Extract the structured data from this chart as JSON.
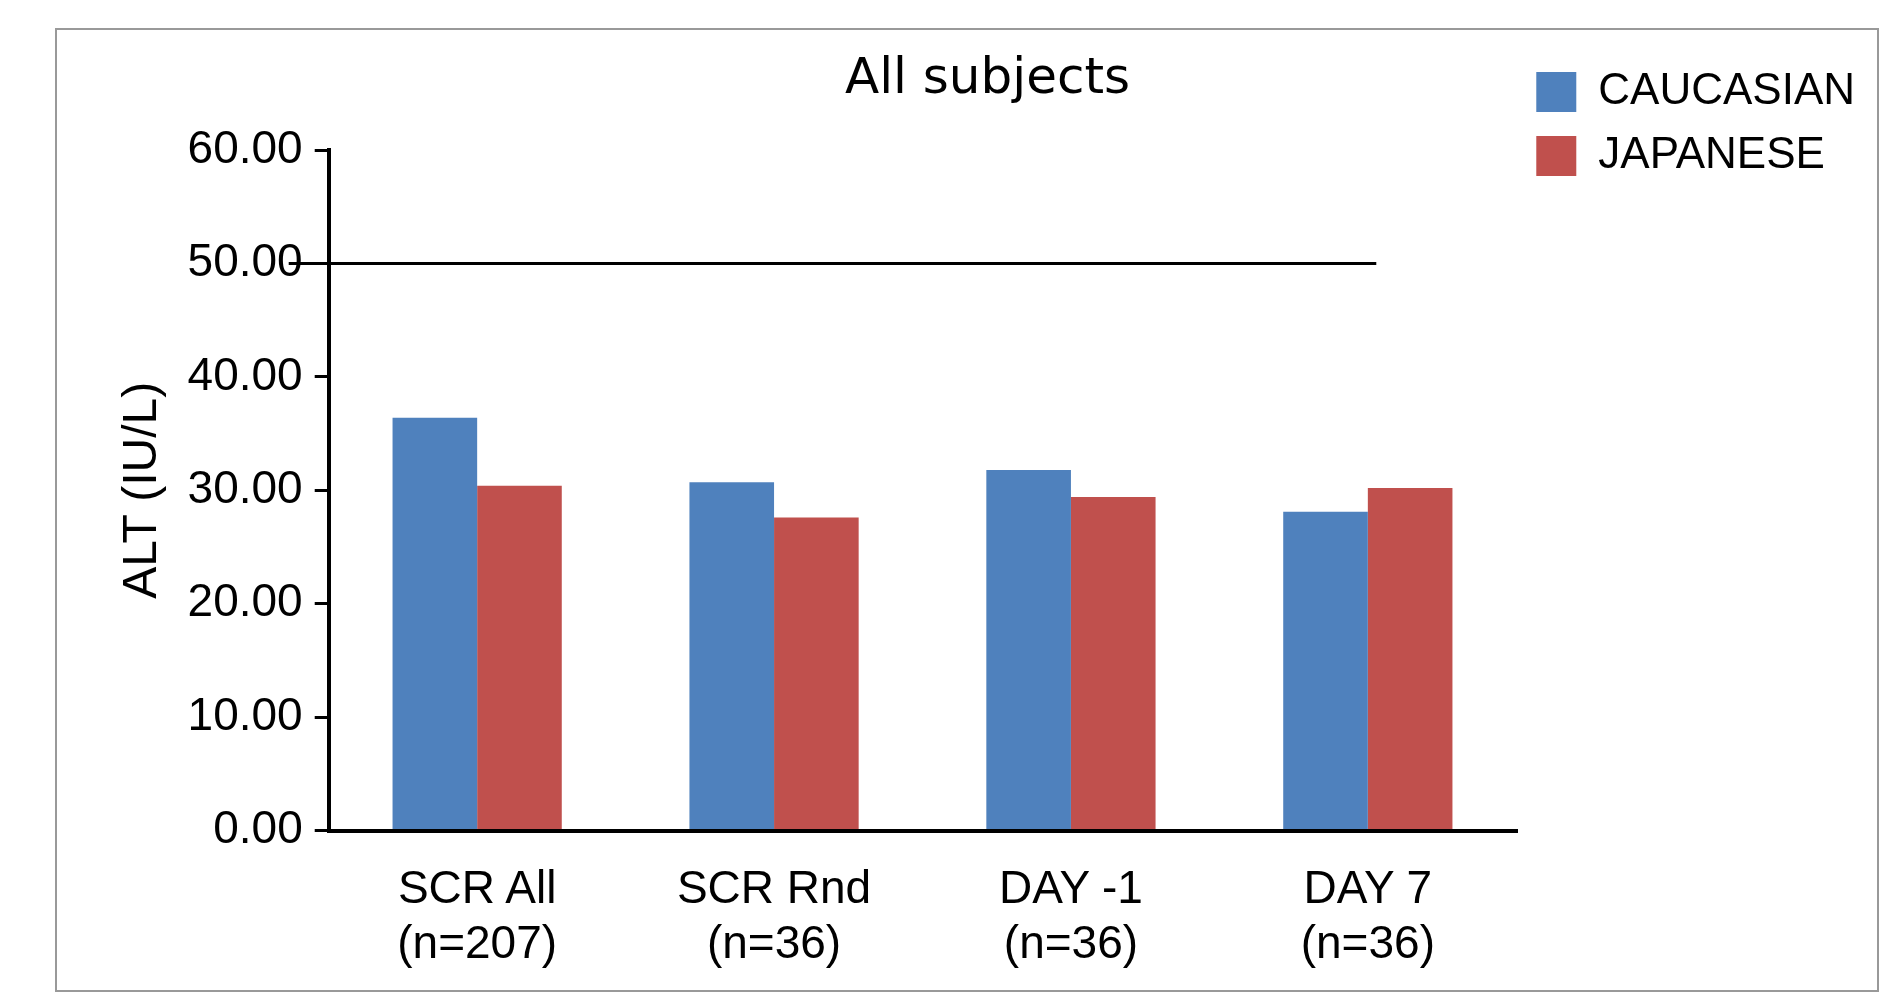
{
  "chart_data": {
    "type": "bar",
    "title": "All subjects",
    "ylabel": "ALT (IU/L)",
    "categories": [
      "SCR All\n(n=207)",
      "SCR Rnd\n(n=36)",
      "DAY -1\n(n=36)",
      "DAY 7\n(n=36)"
    ],
    "series": [
      {
        "name": "CAUCASIAN",
        "color": "#4f81bd",
        "values": [
          36.4,
          30.7,
          31.8,
          28.1
        ]
      },
      {
        "name": "JAPANESE",
        "color": "#c0504d",
        "values": [
          30.4,
          27.6,
          29.4,
          30.2
        ]
      }
    ],
    "ylim": [
      0,
      60
    ],
    "yticks": [
      {
        "value": 0,
        "label": "0.00"
      },
      {
        "value": 10,
        "label": "10.00"
      },
      {
        "value": 20,
        "label": "20.00"
      },
      {
        "value": 30,
        "label": "30.00"
      },
      {
        "value": 40,
        "label": "40.00"
      },
      {
        "value": 50,
        "label": "50.00"
      },
      {
        "value": 60,
        "label": "60.00"
      }
    ],
    "ref_lines": [
      {
        "axis": "y",
        "value": 50,
        "color": "#000000"
      }
    ],
    "grid": false,
    "legend": "top right"
  }
}
